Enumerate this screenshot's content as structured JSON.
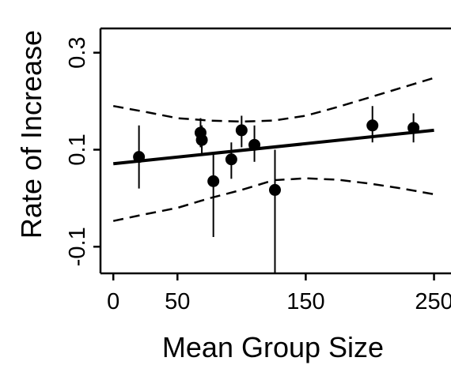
{
  "chart_data": {
    "type": "scatter",
    "xlabel": "Mean Group Size",
    "ylabel": "Rate of Increase",
    "xlim": [
      -10,
      262
    ],
    "ylim": [
      -0.155,
      0.35
    ],
    "x_ticks": [
      0,
      50,
      150,
      250
    ],
    "x_tick_labels": [
      "0",
      "50",
      "150",
      "250"
    ],
    "y_ticks": [
      -0.1,
      0.1,
      0.3
    ],
    "y_tick_labels": [
      "-0.1",
      "0.1",
      "0.3"
    ],
    "grid": false,
    "points": [
      {
        "x": 20,
        "y": 0.085,
        "y_low": 0.02,
        "y_high": 0.15
      },
      {
        "x": 68,
        "y": 0.135,
        "y_low": 0.105,
        "y_high": 0.165
      },
      {
        "x": 69,
        "y": 0.12,
        "y_low": 0.09,
        "y_high": 0.15
      },
      {
        "x": 78,
        "y": 0.035,
        "y_low": -0.08,
        "y_high": 0.09
      },
      {
        "x": 92,
        "y": 0.08,
        "y_low": 0.04,
        "y_high": 0.115
      },
      {
        "x": 100,
        "y": 0.14,
        "y_low": 0.105,
        "y_high": 0.17
      },
      {
        "x": 110,
        "y": 0.11,
        "y_low": 0.075,
        "y_high": 0.15
      },
      {
        "x": 126,
        "y": 0.017,
        "y_low": -0.155,
        "y_high": 0.1
      },
      {
        "x": 202,
        "y": 0.15,
        "y_low": 0.115,
        "y_high": 0.19
      },
      {
        "x": 234,
        "y": 0.145,
        "y_low": 0.115,
        "y_high": 0.175
      }
    ],
    "fit_line": {
      "x": [
        0,
        250
      ],
      "y": [
        0.071,
        0.14
      ]
    },
    "ci_upper": {
      "x": [
        0,
        25,
        50,
        75,
        100,
        125,
        150,
        175,
        200,
        225,
        250
      ],
      "y": [
        0.19,
        0.178,
        0.165,
        0.16,
        0.158,
        0.16,
        0.17,
        0.188,
        0.208,
        0.228,
        0.248
      ]
    },
    "ci_lower": {
      "x": [
        0,
        25,
        50,
        75,
        100,
        125,
        150,
        175,
        200,
        225,
        250
      ],
      "y": [
        -0.047,
        -0.033,
        -0.02,
        0.0,
        0.017,
        0.037,
        0.041,
        0.038,
        0.03,
        0.02,
        0.008
      ]
    }
  }
}
